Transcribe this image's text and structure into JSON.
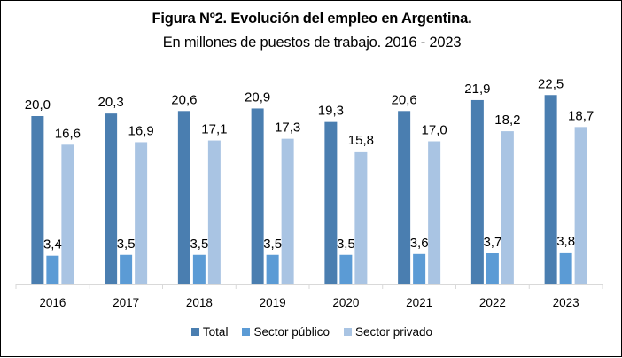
{
  "chart_data": {
    "type": "bar",
    "title": "Figura Nº2. Evolución del empleo en Argentina.",
    "subtitle": "En millones de puestos de trabajo. 2016 - 2023",
    "xlabel": "",
    "ylabel": "",
    "categories": [
      "2016",
      "2017",
      "2018",
      "2019",
      "2020",
      "2021",
      "2022",
      "2023"
    ],
    "series": [
      {
        "name": "Total",
        "color": "#4a7eb0",
        "values": [
          20.0,
          20.3,
          20.6,
          20.9,
          19.3,
          20.6,
          21.9,
          22.5
        ],
        "labels": [
          "20,0",
          "20,3",
          "20,6",
          "20,9",
          "19,3",
          "20,6",
          "21,9",
          "22,5"
        ]
      },
      {
        "name": "Sector público",
        "color": "#5b9bd5",
        "values": [
          3.4,
          3.5,
          3.5,
          3.5,
          3.5,
          3.6,
          3.7,
          3.8
        ],
        "labels": [
          "3,4",
          "3,5",
          "3,5",
          "3,5",
          "3,5",
          "3,6",
          "3,7",
          "3,8"
        ]
      },
      {
        "name": "Sector privado",
        "color": "#a9c4e3",
        "values": [
          16.6,
          16.9,
          17.1,
          17.3,
          15.8,
          17.0,
          18.2,
          18.7
        ],
        "labels": [
          "16,6",
          "16,9",
          "17,1",
          "17,3",
          "15,8",
          "17,0",
          "18,2",
          "18,7"
        ]
      }
    ],
    "ylim": [
      0,
      25
    ],
    "grid": false,
    "y_axis_visible": false,
    "legend_position": "bottom"
  }
}
